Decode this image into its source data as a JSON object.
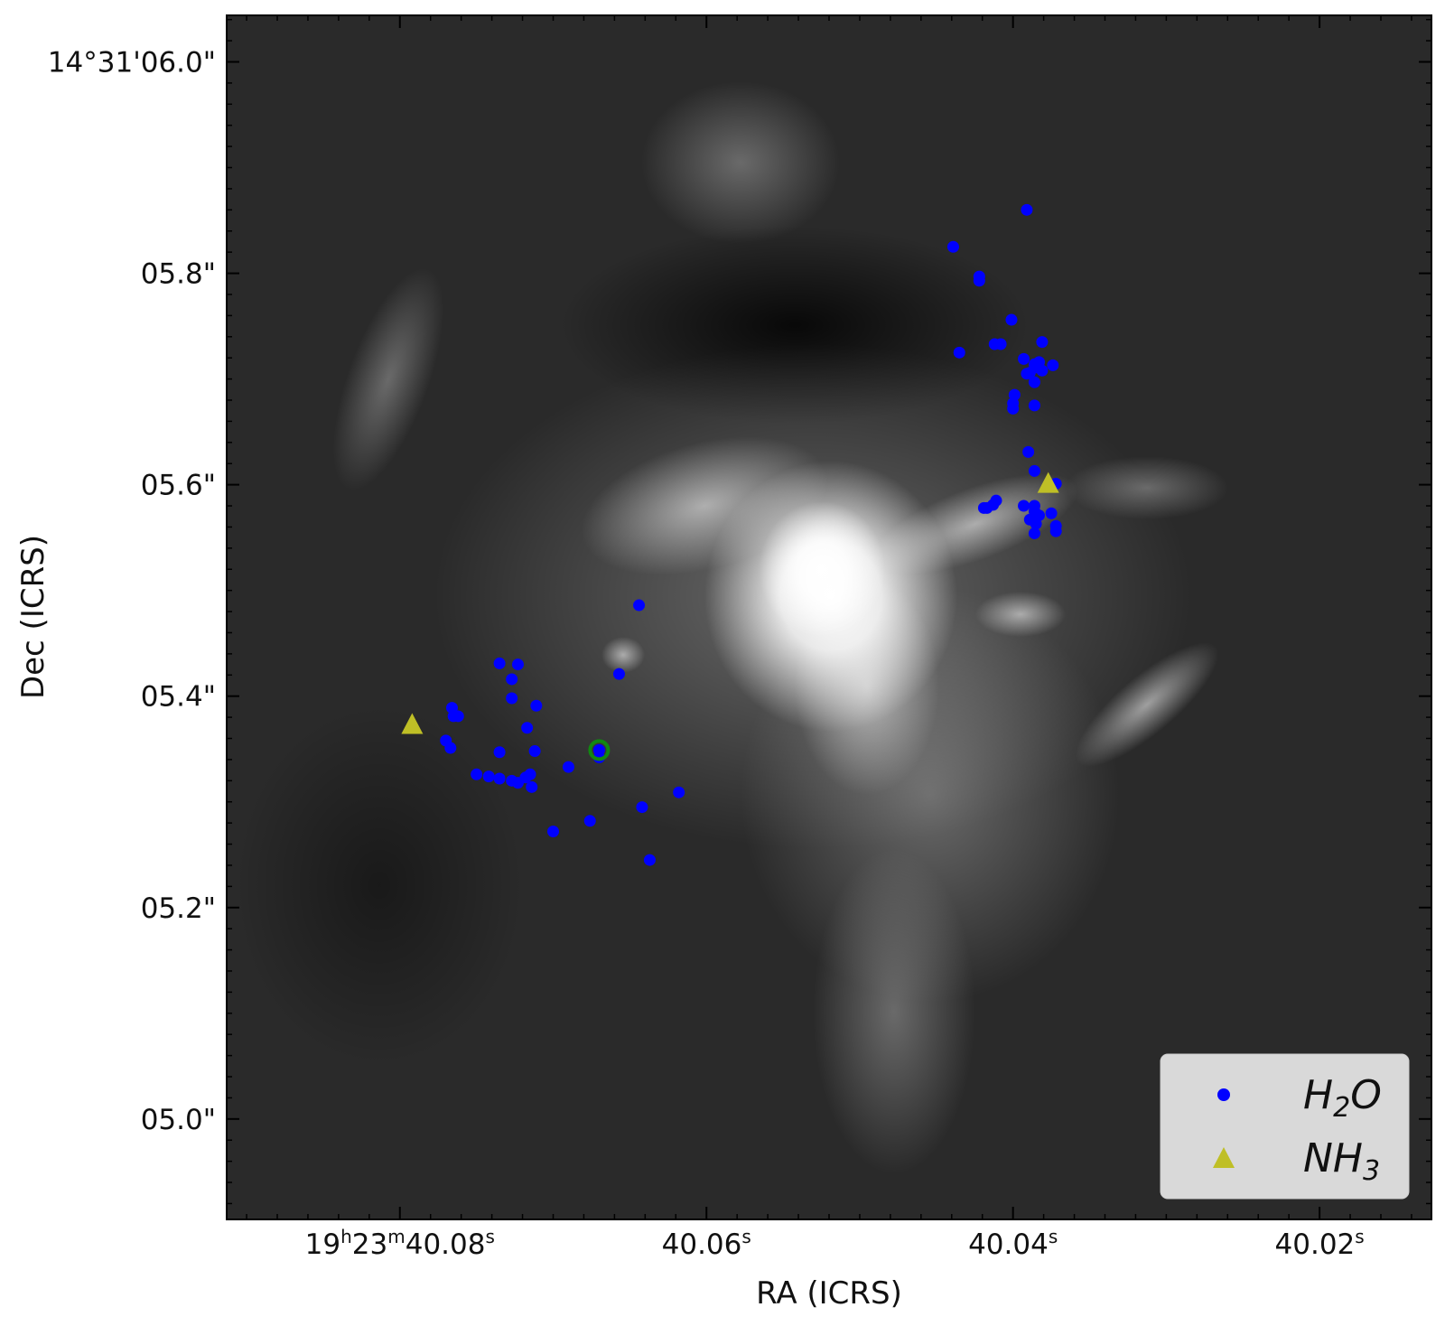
{
  "chart_data": {
    "type": "scatter",
    "title": "",
    "xlabel": "RA (ICRS)",
    "ylabel": "Dec (ICRS)",
    "x_unit": "seconds of RA (19h23m prefix)",
    "y_unit": "Dec arcsec (14°31' prefix)",
    "xlim": [
      40.0913,
      40.0127
    ],
    "ylim": [
      4.905,
      6.044
    ],
    "grid": false,
    "legend_position": "bottom-right",
    "background": "grayscale continuum image",
    "x_ticks": [
      {
        "value": 40.08,
        "label_parts": [
          "19",
          "h",
          "23",
          "m",
          "40.08",
          "s"
        ]
      },
      {
        "value": 40.06,
        "label_parts": [
          "40.06",
          "s"
        ]
      },
      {
        "value": 40.04,
        "label_parts": [
          "40.04",
          "s"
        ]
      },
      {
        "value": 40.02,
        "label_parts": [
          "40.02",
          "s"
        ]
      }
    ],
    "y_ticks": [
      {
        "value": 6.0,
        "label": "14°31'06.0\""
      },
      {
        "value": 5.8,
        "label": "05.8\""
      },
      {
        "value": 5.6,
        "label": "05.6\""
      },
      {
        "value": 5.4,
        "label": "05.4\""
      },
      {
        "value": 5.2,
        "label": "05.2\""
      },
      {
        "value": 5.0,
        "label": "05.0\""
      }
    ],
    "series": [
      {
        "name": "H2O",
        "legend_label": {
          "base": "H",
          "sub": "2",
          "tail": "O"
        },
        "marker": "circle",
        "color": "#0000ff",
        "points": [
          [
            40.0391,
            5.86
          ],
          [
            40.0439,
            5.825
          ],
          [
            40.0422,
            5.797
          ],
          [
            40.0422,
            5.793
          ],
          [
            40.0401,
            5.756
          ],
          [
            40.0412,
            5.733
          ],
          [
            40.0408,
            5.733
          ],
          [
            40.0381,
            5.735
          ],
          [
            40.0435,
            5.725
          ],
          [
            40.0393,
            5.719
          ],
          [
            40.0386,
            5.714
          ],
          [
            40.0385,
            5.711
          ],
          [
            40.0383,
            5.716
          ],
          [
            40.0374,
            5.713
          ],
          [
            40.0389,
            5.706
          ],
          [
            40.0391,
            5.705
          ],
          [
            40.0381,
            5.708
          ],
          [
            40.0386,
            5.697
          ],
          [
            40.0399,
            5.685
          ],
          [
            40.04,
            5.677
          ],
          [
            40.04,
            5.672
          ],
          [
            40.0386,
            5.675
          ],
          [
            40.039,
            5.631
          ],
          [
            40.0386,
            5.613
          ],
          [
            40.0372,
            5.601
          ],
          [
            40.0411,
            5.585
          ],
          [
            40.0413,
            5.581
          ],
          [
            40.0417,
            5.578
          ],
          [
            40.0419,
            5.578
          ],
          [
            40.0393,
            5.58
          ],
          [
            40.0386,
            5.58
          ],
          [
            40.0386,
            5.575
          ],
          [
            40.0383,
            5.571
          ],
          [
            40.0375,
            5.573
          ],
          [
            40.0389,
            5.567
          ],
          [
            40.0385,
            5.563
          ],
          [
            40.0372,
            5.561
          ],
          [
            40.0372,
            5.556
          ],
          [
            40.0386,
            5.554
          ],
          [
            40.0644,
            5.486
          ],
          [
            40.0657,
            5.421
          ],
          [
            40.0735,
            5.431
          ],
          [
            40.0723,
            5.43
          ],
          [
            40.0727,
            5.416
          ],
          [
            40.0727,
            5.398
          ],
          [
            40.0711,
            5.391
          ],
          [
            40.0717,
            5.37
          ],
          [
            40.0766,
            5.389
          ],
          [
            40.0765,
            5.381
          ],
          [
            40.0762,
            5.381
          ],
          [
            40.077,
            5.358
          ],
          [
            40.0767,
            5.351
          ],
          [
            40.0735,
            5.347
          ],
          [
            40.0712,
            5.348
          ],
          [
            40.067,
            5.349
          ],
          [
            40.069,
            5.333
          ],
          [
            40.0715,
            5.326
          ],
          [
            40.0718,
            5.323
          ],
          [
            40.0742,
            5.324
          ],
          [
            40.075,
            5.326
          ],
          [
            40.0735,
            5.322
          ],
          [
            40.0727,
            5.32
          ],
          [
            40.0723,
            5.318
          ],
          [
            40.0714,
            5.314
          ],
          [
            40.0618,
            5.309
          ],
          [
            40.0642,
            5.295
          ],
          [
            40.07,
            5.272
          ],
          [
            40.0676,
            5.282
          ],
          [
            40.0637,
            5.245
          ],
          [
            40.067,
            5.342
          ]
        ]
      },
      {
        "name": "NH3",
        "legend_label": {
          "base": "NH",
          "sub": "3",
          "tail": ""
        },
        "marker": "triangle",
        "color": "#bfbf26",
        "points": [
          [
            40.0377,
            5.6
          ],
          [
            40.0792,
            5.372
          ]
        ]
      },
      {
        "name": "",
        "marker": "ring",
        "color": "#118811",
        "points": [
          [
            40.067,
            5.349
          ]
        ]
      }
    ]
  }
}
